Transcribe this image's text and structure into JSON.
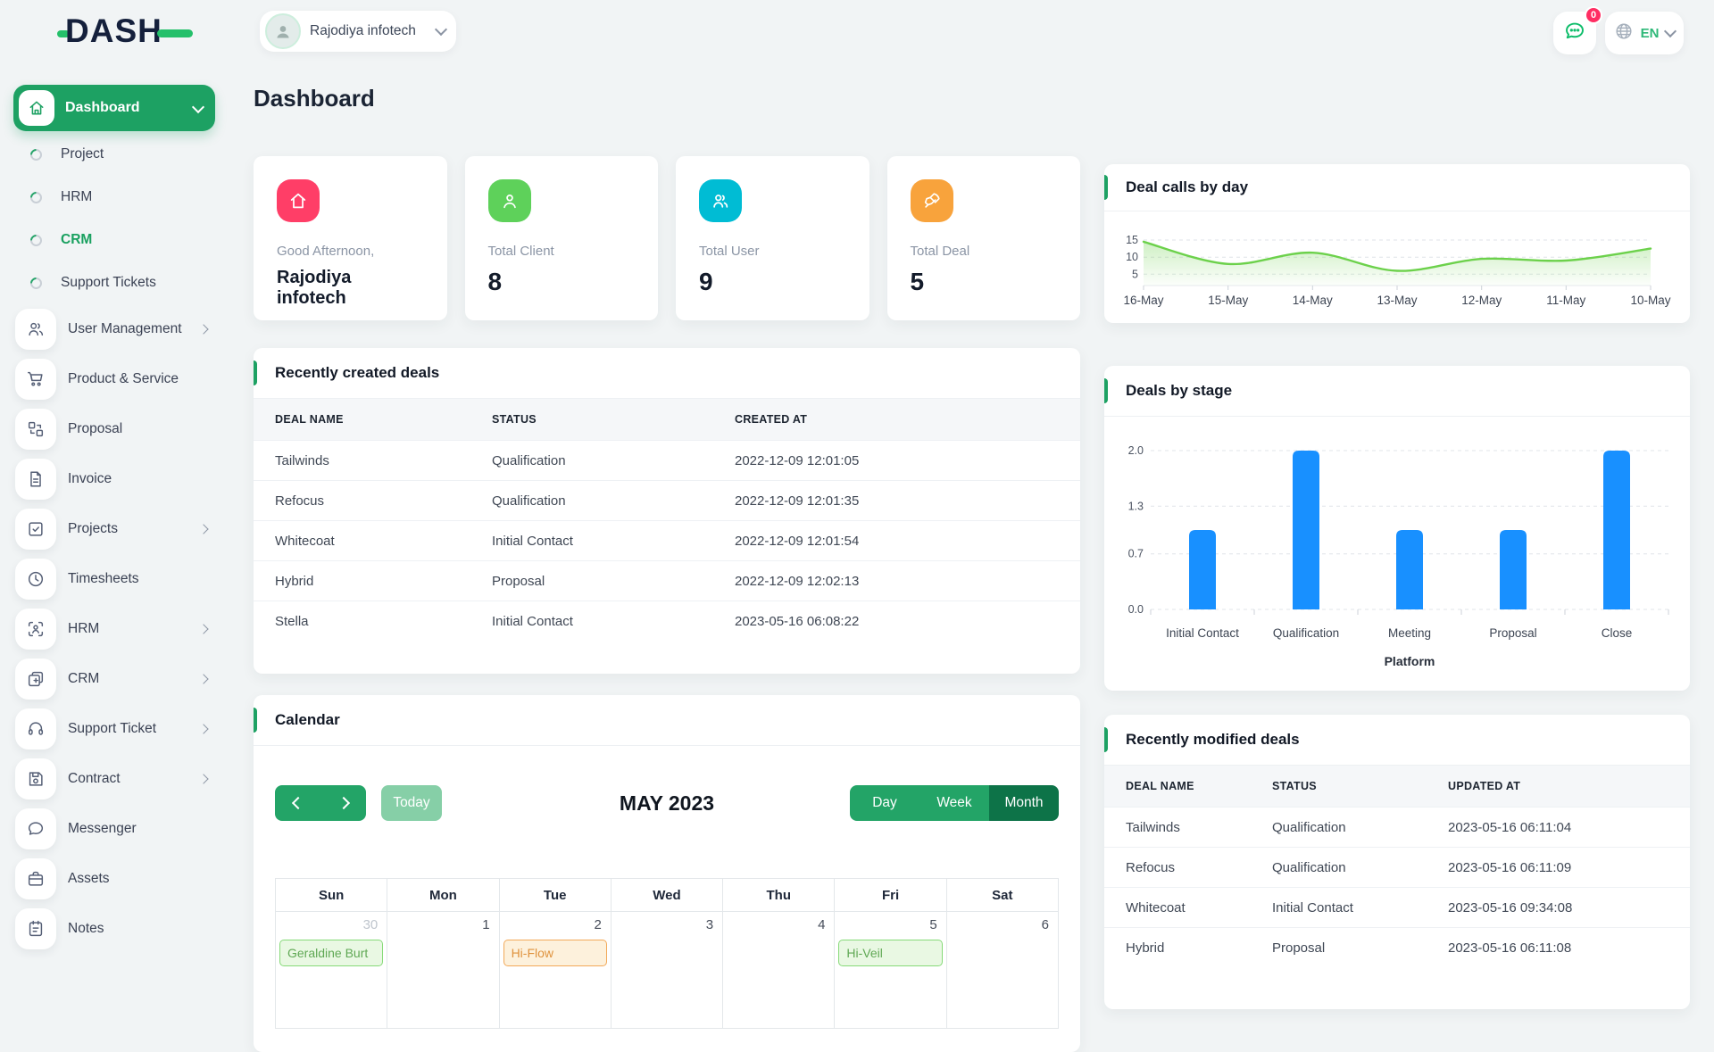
{
  "brand": {
    "name": "DASH",
    "accent_color": "#24c06a",
    "navy_color": "#15203c"
  },
  "topbar": {
    "workspace_name": "Rajodiya infotech",
    "chat_badge": "0",
    "language_code": "EN"
  },
  "sidebar": {
    "dashboard_label": "Dashboard",
    "sub_items": [
      {
        "label": "Project",
        "active": false
      },
      {
        "label": "HRM",
        "active": false
      },
      {
        "label": "CRM",
        "active": true
      },
      {
        "label": "Support Tickets",
        "active": false
      }
    ],
    "items": [
      {
        "label": "User Management",
        "icon": "users-icon",
        "chevron": true
      },
      {
        "label": "Product & Service",
        "icon": "cart-icon",
        "chevron": false
      },
      {
        "label": "Proposal",
        "icon": "proposal-icon",
        "chevron": false
      },
      {
        "label": "Invoice",
        "icon": "invoice-icon",
        "chevron": false
      },
      {
        "label": "Projects",
        "icon": "projects-icon",
        "chevron": true
      },
      {
        "label": "Timesheets",
        "icon": "clock-icon",
        "chevron": false
      },
      {
        "label": "HRM",
        "icon": "person-scan-icon",
        "chevron": true
      },
      {
        "label": "CRM",
        "icon": "layout-icon",
        "chevron": true
      },
      {
        "label": "Support Ticket",
        "icon": "headset-icon",
        "chevron": true
      },
      {
        "label": "Contract",
        "icon": "save-icon",
        "chevron": true
      },
      {
        "label": "Messenger",
        "icon": "chat-icon",
        "chevron": false
      },
      {
        "label": "Assets",
        "icon": "briefcase-icon",
        "chevron": false
      },
      {
        "label": "Notes",
        "icon": "notes-icon",
        "chevron": false
      }
    ]
  },
  "page": {
    "title": "Dashboard"
  },
  "stats": [
    {
      "label": "Good Afternoon,",
      "value": "Rajodiya infotech",
      "icon": "home-icon",
      "color": "#ff3e67"
    },
    {
      "label": "Total Client",
      "value": "8",
      "icon": "user-icon",
      "color": "#5ed15a"
    },
    {
      "label": "Total User",
      "value": "9",
      "icon": "users-icon",
      "color": "#00bcd4"
    },
    {
      "label": "Total Deal",
      "value": "5",
      "icon": "rocket-icon",
      "color": "#f8a33c"
    }
  ],
  "chart_data": [
    {
      "id": "deal_calls_by_day",
      "type": "area",
      "title": "Deal calls by day",
      "x": [
        "16-May",
        "15-May",
        "14-May",
        "13-May",
        "12-May",
        "11-May",
        "10-May"
      ],
      "values": [
        14.5,
        8,
        11.3,
        6,
        9.5,
        9,
        12.5
      ],
      "yticks": [
        5,
        10,
        15
      ],
      "ylim": [
        1.7,
        16.3
      ],
      "line_color": "#6cd14b",
      "grid": "dashed-horizontal",
      "legend": "none"
    },
    {
      "id": "deals_by_stage",
      "type": "bar",
      "title": "Deals by stage",
      "categories": [
        "Initial Contact",
        "Qualification",
        "Meeting",
        "Proposal",
        "Close"
      ],
      "values": [
        1,
        2,
        1,
        1,
        2
      ],
      "yticks": [
        0.0,
        0.7,
        1.3,
        2.0
      ],
      "ylim": [
        0,
        2.0
      ],
      "xlabel": "Platform",
      "bar_color": "#1890ff",
      "grid": "dashed-horizontal",
      "legend": "none"
    }
  ],
  "recent_created": {
    "title": "Recently created deals",
    "columns": [
      "Deal Name",
      "Status",
      "Created At"
    ],
    "rows": [
      [
        "Tailwinds",
        "Qualification",
        "2022-12-09 12:01:05"
      ],
      [
        "Refocus",
        "Qualification",
        "2022-12-09 12:01:35"
      ],
      [
        "Whitecoat",
        "Initial Contact",
        "2022-12-09 12:01:54"
      ],
      [
        "Hybrid",
        "Proposal",
        "2022-12-09 12:02:13"
      ],
      [
        "Stella",
        "Initial Contact",
        "2023-05-16 06:08:22"
      ]
    ]
  },
  "recent_modified": {
    "title": "Recently modified deals",
    "columns": [
      "Deal Name",
      "Status",
      "Updated At"
    ],
    "rows": [
      [
        "Tailwinds",
        "Qualification",
        "2023-05-16 06:11:04"
      ],
      [
        "Refocus",
        "Qualification",
        "2023-05-16 06:11:09"
      ],
      [
        "Whitecoat",
        "Initial Contact",
        "2023-05-16 09:34:08"
      ],
      [
        "Hybrid",
        "Proposal",
        "2023-05-16 06:11:08"
      ]
    ]
  },
  "calendar": {
    "title": "Calendar",
    "today_label": "Today",
    "month_title": "MAY 2023",
    "views": [
      "Day",
      "Week",
      "Month"
    ],
    "active_view": "Month",
    "day_headers": [
      "Sun",
      "Mon",
      "Tue",
      "Wed",
      "Thu",
      "Fri",
      "Sat"
    ],
    "week": [
      {
        "date": "30",
        "muted": true,
        "event": {
          "label": "Geraldine Burt",
          "color": "green"
        }
      },
      {
        "date": "1"
      },
      {
        "date": "2",
        "event": {
          "label": "Hi-Flow",
          "color": "orange"
        }
      },
      {
        "date": "3"
      },
      {
        "date": "4"
      },
      {
        "date": "5",
        "event": {
          "label": "Hi-Veil",
          "color": "green"
        }
      },
      {
        "date": "6"
      }
    ],
    "event_colors": {
      "green": {
        "bg": "#e9f8e3",
        "border": "#86da78",
        "text": "#5fa854"
      },
      "orange": {
        "bg": "#fdf1dc",
        "border": "#f2a959",
        "text": "#df923d"
      }
    }
  }
}
